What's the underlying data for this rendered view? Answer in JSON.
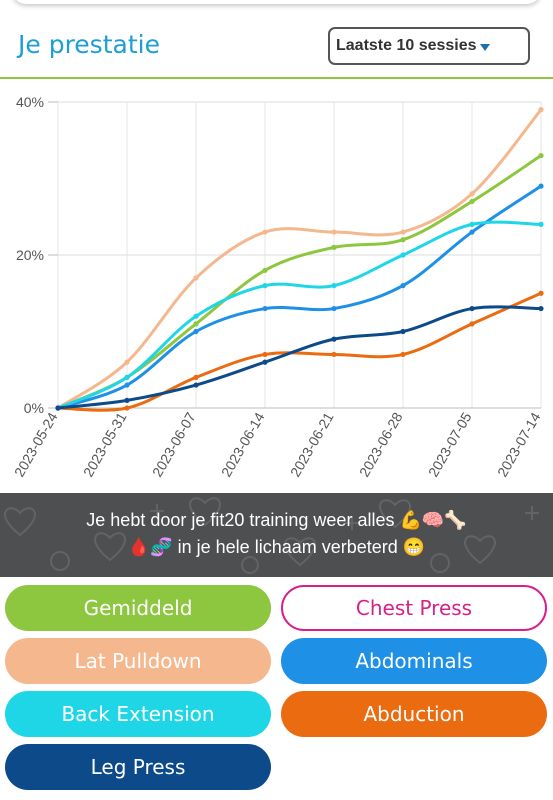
{
  "header": {
    "title": "Je prestatie",
    "period_select": "Laatste 10 sessies"
  },
  "chart_data": {
    "type": "line",
    "x": [
      "2023-05-24",
      "2023-05-31",
      "2023-06-07",
      "2023-06-14",
      "2023-06-21",
      "2023-06-28",
      "2023-07-05",
      "2023-07-14"
    ],
    "ytick_labels": [
      "0%",
      "20%",
      "40%"
    ],
    "ylim": [
      0,
      40
    ],
    "grid": true,
    "series": [
      {
        "name": "Gemiddeld",
        "color": "#8dc63f",
        "values": [
          0,
          4,
          11,
          18,
          21,
          22,
          27,
          33
        ]
      },
      {
        "name": "Lat Pulldown",
        "color": "#f5b78e",
        "values": [
          0,
          6,
          17,
          23,
          23,
          23,
          28,
          39
        ]
      },
      {
        "name": "Abdominals",
        "color": "#1e90e6",
        "values": [
          0,
          3,
          10,
          13,
          13,
          16,
          23,
          29
        ]
      },
      {
        "name": "Back Extension",
        "color": "#1ed6e6",
        "values": [
          0,
          4,
          12,
          16,
          16,
          20,
          24,
          24
        ]
      },
      {
        "name": "Abduction",
        "color": "#ea6b10",
        "values": [
          0,
          0,
          4,
          7,
          7,
          7,
          11,
          15
        ]
      },
      {
        "name": "Leg Press",
        "color": "#0c4a8a",
        "values": [
          0,
          1,
          3,
          6,
          9,
          10,
          13,
          13
        ]
      }
    ]
  },
  "banner": {
    "line1": "Je hebt door je fit20 training weer alles 💪🧠🦴",
    "line2": "🩸🧬 in je hele lichaam verbeterd 😁"
  },
  "legend_buttons": [
    {
      "label": "Gemiddeld",
      "color": "#8dc63f",
      "style": "filled"
    },
    {
      "label": "Chest Press",
      "color": "#d6208a",
      "style": "outline"
    },
    {
      "label": "Lat Pulldown",
      "color": "#f5b78e",
      "style": "filled"
    },
    {
      "label": "Abdominals",
      "color": "#1e90e6",
      "style": "filled"
    },
    {
      "label": "Back Extension",
      "color": "#1ed6e6",
      "style": "filled"
    },
    {
      "label": "Abduction",
      "color": "#ea6b10",
      "style": "filled"
    },
    {
      "label": "Leg Press",
      "color": "#0c4a8a",
      "style": "filled"
    }
  ]
}
